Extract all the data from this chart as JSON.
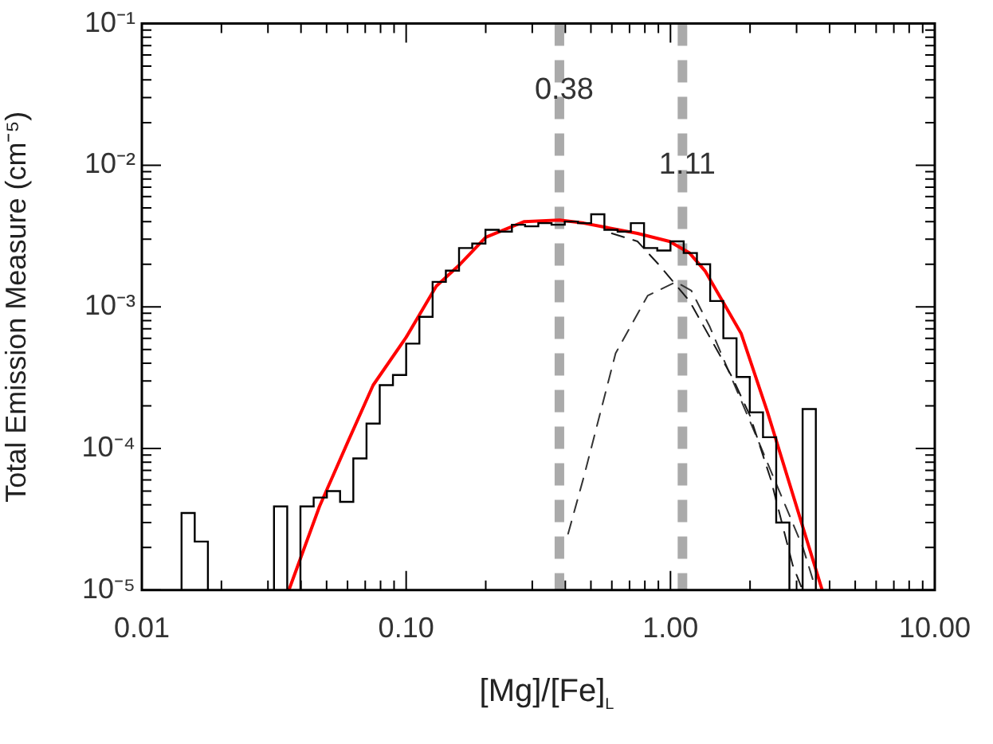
{
  "chart_data": {
    "type": "histogram",
    "xlabel": "[Mg]/[Fe]$_{L}$",
    "ylabel": "Total Emission Measure (cm⁻⁵)",
    "log": "xy",
    "grid": false,
    "legend": false,
    "marker": "none",
    "xlim": [
      0.01,
      10
    ],
    "ylim": [
      1e-05,
      0.1
    ],
    "xticks": [
      {
        "value": 0.01,
        "label": "0.01"
      },
      {
        "value": 0.02,
        "label": null
      },
      {
        "value": 0.03,
        "label": null
      },
      {
        "value": 0.04,
        "label": null
      },
      {
        "value": 0.05,
        "label": null
      },
      {
        "value": 0.06,
        "label": null
      },
      {
        "value": 0.07,
        "label": null
      },
      {
        "value": 0.08,
        "label": null
      },
      {
        "value": 0.09,
        "label": null
      },
      {
        "value": 0.1,
        "label": "0.10"
      },
      {
        "value": 0.2,
        "label": null
      },
      {
        "value": 0.3,
        "label": null
      },
      {
        "value": 0.4,
        "label": null
      },
      {
        "value": 0.5,
        "label": null
      },
      {
        "value": 0.6,
        "label": null
      },
      {
        "value": 0.7,
        "label": null
      },
      {
        "value": 0.8,
        "label": null
      },
      {
        "value": 0.9,
        "label": null
      },
      {
        "value": 1,
        "label": "1.00"
      },
      {
        "value": 2,
        "label": null
      },
      {
        "value": 3,
        "label": null
      },
      {
        "value": 4,
        "label": null
      },
      {
        "value": 5,
        "label": null
      },
      {
        "value": 6,
        "label": null
      },
      {
        "value": 7,
        "label": null
      },
      {
        "value": 8,
        "label": null
      },
      {
        "value": 9,
        "label": null
      },
      {
        "value": 10,
        "label": "10.00"
      }
    ],
    "yticks": [
      {
        "value": 1e-05,
        "label": "10⁻⁵"
      },
      {
        "value": 2e-05,
        "label": null
      },
      {
        "value": 3e-05,
        "label": null
      },
      {
        "value": 4e-05,
        "label": null
      },
      {
        "value": 5e-05,
        "label": null
      },
      {
        "value": 6e-05,
        "label": null
      },
      {
        "value": 7e-05,
        "label": null
      },
      {
        "value": 8e-05,
        "label": null
      },
      {
        "value": 9e-05,
        "label": null
      },
      {
        "value": 0.0001,
        "label": "10⁻⁴"
      },
      {
        "value": 0.0002,
        "label": null
      },
      {
        "value": 0.0003,
        "label": null
      },
      {
        "value": 0.0004,
        "label": null
      },
      {
        "value": 0.0005,
        "label": null
      },
      {
        "value": 0.0006,
        "label": null
      },
      {
        "value": 0.0007,
        "label": null
      },
      {
        "value": 0.0008,
        "label": null
      },
      {
        "value": 0.0009,
        "label": null
      },
      {
        "value": 0.001,
        "label": "10⁻³"
      },
      {
        "value": 0.002,
        "label": null
      },
      {
        "value": 0.003,
        "label": null
      },
      {
        "value": 0.004,
        "label": null
      },
      {
        "value": 0.005,
        "label": null
      },
      {
        "value": 0.006,
        "label": null
      },
      {
        "value": 0.007,
        "label": null
      },
      {
        "value": 0.008,
        "label": null
      },
      {
        "value": 0.009,
        "label": null
      },
      {
        "value": 0.01,
        "label": "10⁻²"
      },
      {
        "value": 0.02,
        "label": null
      },
      {
        "value": 0.03,
        "label": null
      },
      {
        "value": 0.04,
        "label": null
      },
      {
        "value": 0.05,
        "label": null
      },
      {
        "value": 0.06,
        "label": null
      },
      {
        "value": 0.07,
        "label": null
      },
      {
        "value": 0.08,
        "label": null
      },
      {
        "value": 0.09,
        "label": null
      },
      {
        "value": 0.1,
        "label": "10⁻¹"
      }
    ],
    "ref_lines": [
      {
        "axis": "x",
        "value": 0.38,
        "label": "0.38",
        "color": "#aaaaaa",
        "line_style": "dashed"
      },
      {
        "axis": "x",
        "value": 1.11,
        "label": "1.11",
        "color": "#aaaaaa",
        "line_style": "dashed"
      }
    ],
    "series": [
      {
        "type": "histogram",
        "color": "#000000",
        "bins": [
          0.01413,
          0.01585,
          0.01778,
          0.03162,
          0.03548,
          0.03981,
          0.04467,
          0.05012,
          0.05623,
          0.0631,
          0.07079,
          0.07943,
          0.08913,
          0.1,
          0.1122,
          0.1259,
          0.1413,
          0.1585,
          0.1778,
          0.1995,
          0.2239,
          0.2512,
          0.2818,
          0.3162,
          0.3548,
          0.3981,
          0.4467,
          0.5012,
          0.5623,
          0.631,
          0.7079,
          0.7943,
          0.8913,
          1,
          1.122,
          1.259,
          1.413,
          1.585,
          1.778,
          1.995,
          2.239,
          2.512,
          2.818,
          3.162,
          3.548
        ],
        "values": [
          3.5e-05,
          2.2e-05,
          null,
          3.9e-05,
          null,
          3.9e-05,
          4.5e-05,
          5e-05,
          4.2e-05,
          8.5e-05,
          0.00015,
          0.00028,
          0.00033,
          0.00055,
          0.00085,
          0.0015,
          0.0018,
          0.0026,
          0.0028,
          0.0035,
          0.0034,
          0.0038,
          0.0037,
          0.0039,
          0.0038,
          0.004,
          0.0039,
          0.0045,
          0.0035,
          0.0034,
          0.0039,
          0.0026,
          0.0025,
          0.0029,
          0.0024,
          0.002,
          0.0011,
          0.0006,
          0.00032,
          0.00018,
          0.00012,
          3e-05,
          null,
          0.00019
        ]
      },
      {
        "type": "line",
        "color": "#ff0000",
        "line_style": "solid",
        "x": [
          0.036,
          0.047,
          0.06,
          0.075,
          0.1,
          0.13,
          0.16,
          0.2,
          0.28,
          0.38,
          0.47,
          0.75,
          0.99,
          1.18,
          1.35,
          1.85,
          2.33,
          2.95,
          3.75
        ],
        "values": [
          1e-05,
          3.9e-05,
          0.00011,
          0.00028,
          0.00061,
          0.0014,
          0.002,
          0.0031,
          0.004,
          0.0041,
          0.0039,
          0.0033,
          0.0029,
          0.0024,
          0.0018,
          0.00065,
          0.00018,
          4.3e-05,
          1e-05
        ]
      },
      {
        "type": "line",
        "color": "#1a1a1a",
        "line_style": "dashed",
        "x": [
          0.6,
          0.75,
          0.9,
          1.18,
          1.71,
          2,
          2.4,
          2.9,
          3.16
        ],
        "values": [
          0.0033,
          0.0029,
          0.002,
          0.0011,
          0.00032,
          0.00017,
          6e-05,
          1.5e-05,
          1e-05
        ]
      },
      {
        "type": "line",
        "color": "#333333",
        "line_style": "dashed",
        "x": [
          0.41,
          0.47,
          0.62,
          0.82,
          1.05,
          1.2,
          1.41,
          2.12,
          3.17,
          3.5
        ],
        "values": [
          2.5e-05,
          6.3e-05,
          0.00047,
          0.0012,
          0.0015,
          0.0013,
          0.00072,
          0.00012,
          2e-05,
          1.1e-05
        ]
      }
    ]
  }
}
